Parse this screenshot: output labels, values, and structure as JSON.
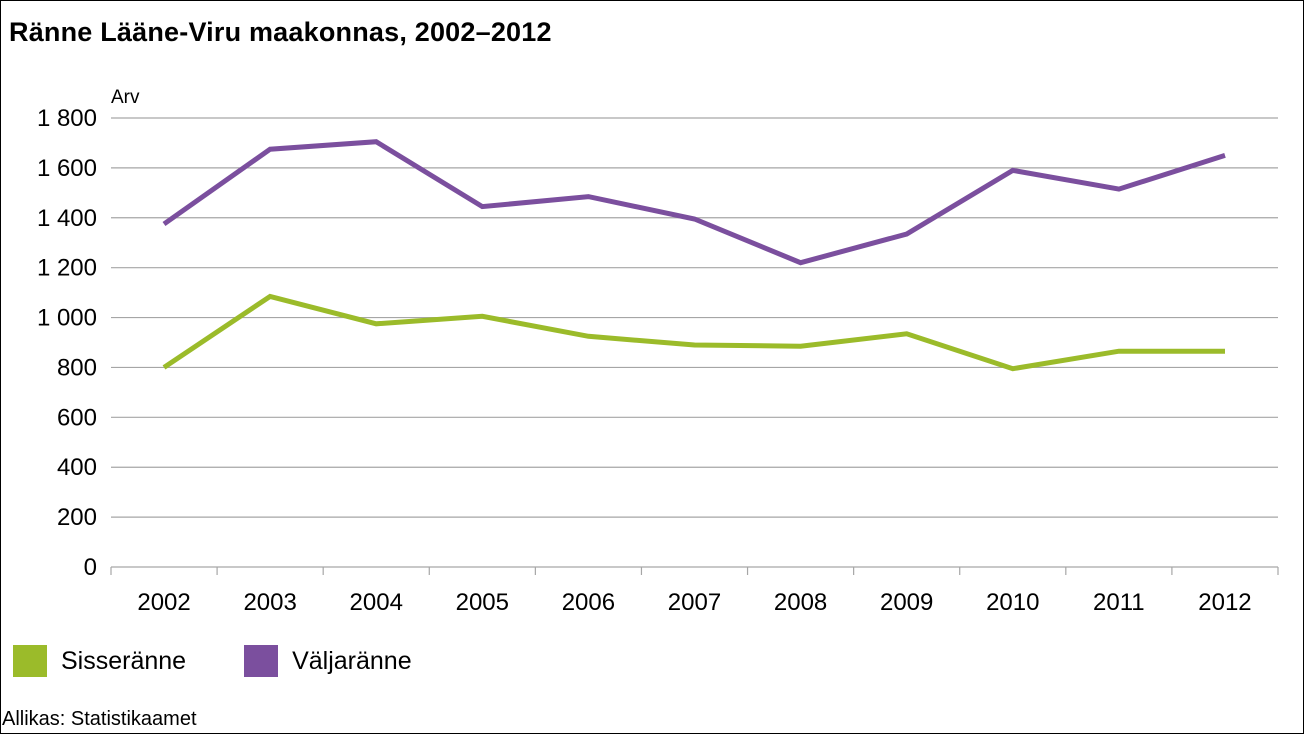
{
  "chart_data": {
    "type": "line",
    "title": "Ränne Lääne-Viru maakonnas, 2002–2012",
    "ylabel": "Arv",
    "xlabel": "",
    "ylim": [
      0,
      1800
    ],
    "y_ticks": [
      {
        "value": 0,
        "label": "0"
      },
      {
        "value": 200,
        "label": "200"
      },
      {
        "value": 400,
        "label": "400"
      },
      {
        "value": 600,
        "label": "600"
      },
      {
        "value": 800,
        "label": "800"
      },
      {
        "value": 1000,
        "label": "1 000"
      },
      {
        "value": 1200,
        "label": "1 200"
      },
      {
        "value": 1400,
        "label": "1 400"
      },
      {
        "value": 1600,
        "label": "1 600"
      },
      {
        "value": 1800,
        "label": "1 800"
      }
    ],
    "categories": [
      "2002",
      "2003",
      "2004",
      "2005",
      "2006",
      "2007",
      "2008",
      "2009",
      "2010",
      "2011",
      "2012"
    ],
    "series": [
      {
        "name": "Sisseränne",
        "color": "#9bbb2a",
        "values": [
          800,
          1085,
          975,
          1005,
          925,
          890,
          885,
          935,
          795,
          865,
          865
        ]
      },
      {
        "name": "Väljaränne",
        "color": "#7b4f9e",
        "values": [
          1375,
          1675,
          1705,
          1445,
          1485,
          1395,
          1220,
          1335,
          1590,
          1515,
          1650
        ]
      }
    ],
    "grid": true,
    "legend_position": "bottom-left"
  },
  "source": "Allikas: Statistikaamet",
  "colors": {
    "gridline": "#a6a6a6",
    "axis": "#a6a6a6"
  }
}
